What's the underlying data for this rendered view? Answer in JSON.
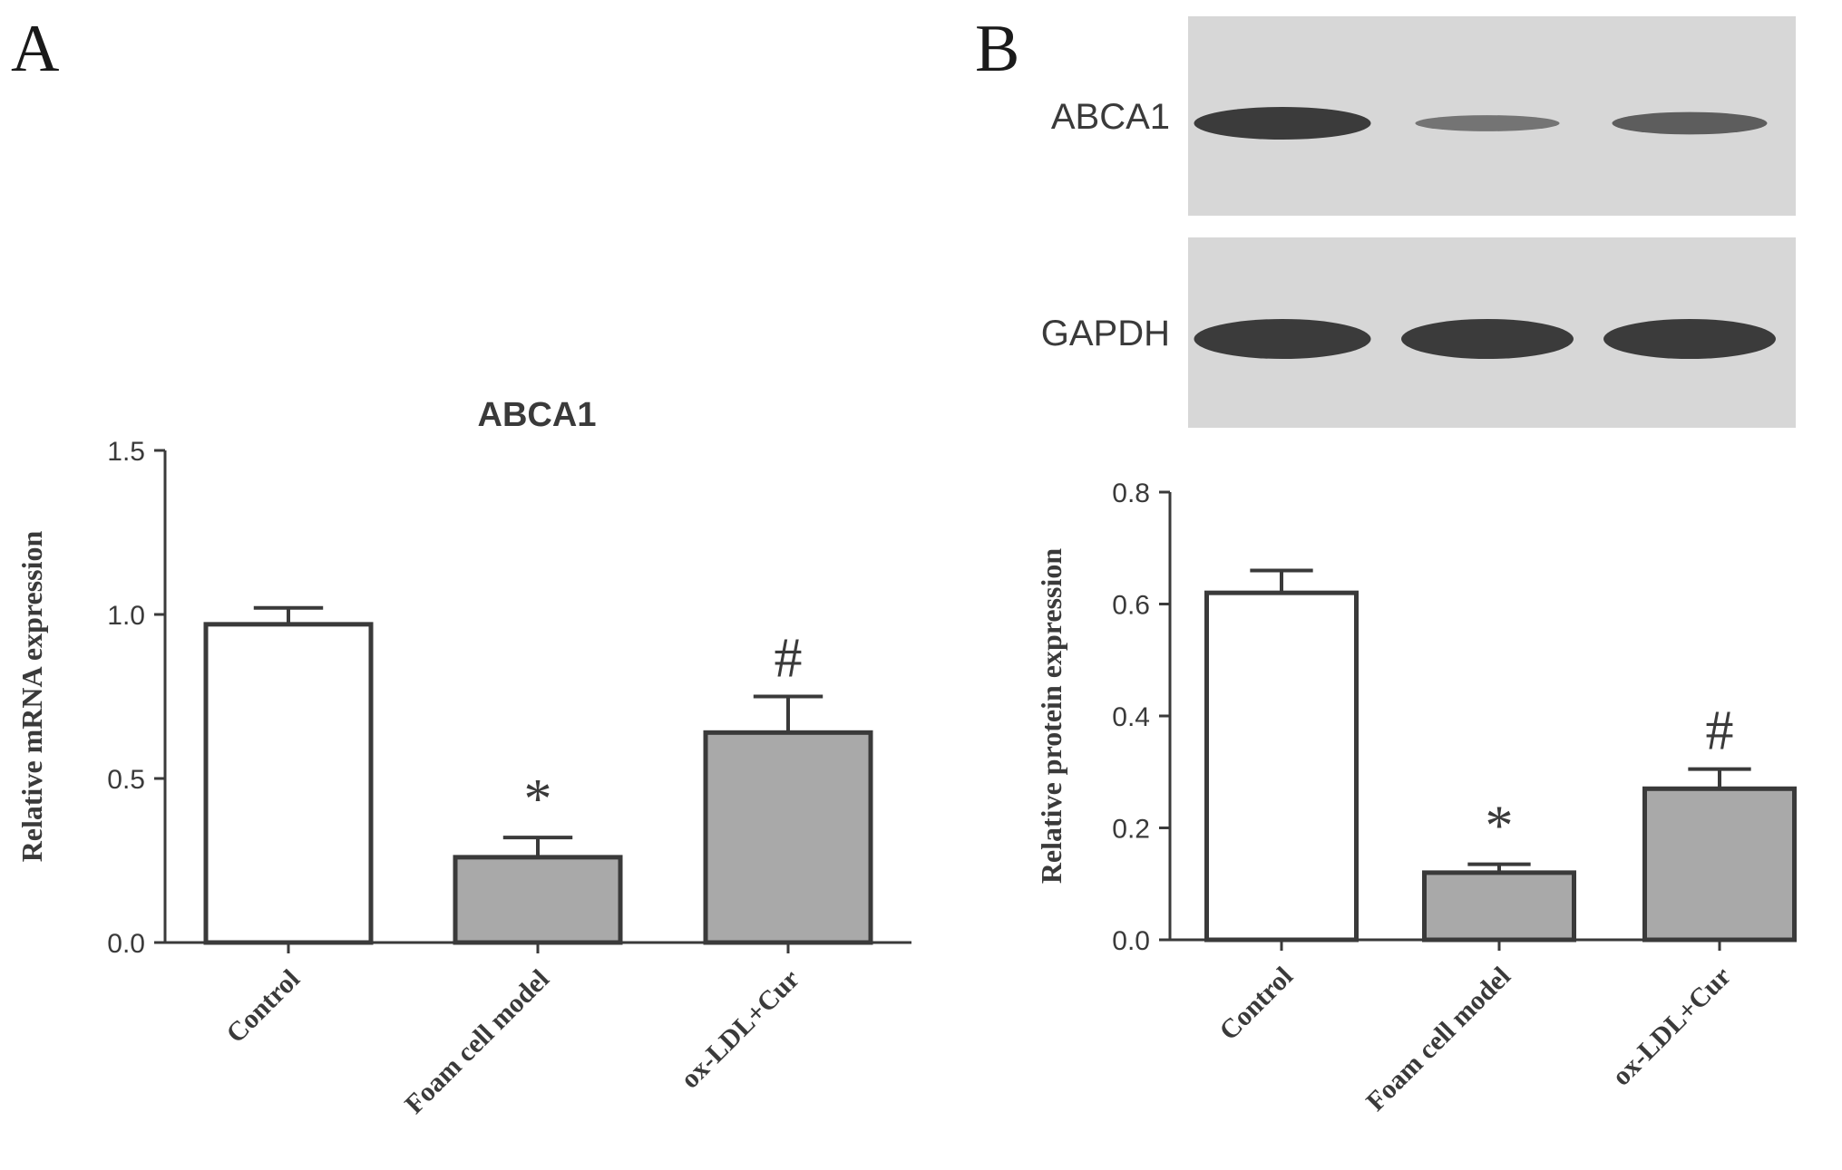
{
  "panels": {
    "a": {
      "letter": "A"
    },
    "b": {
      "letter": "B"
    }
  },
  "blot": {
    "rows": [
      {
        "label": "ABCA1",
        "intensities": [
          1.0,
          0.35,
          0.6
        ]
      },
      {
        "label": "GAPDH",
        "intensities": [
          1.0,
          1.0,
          1.0
        ]
      }
    ]
  },
  "colors": {
    "bar_control": "#ffffff",
    "bar_treated": "#a9a9a9",
    "ink": "#3a3a3a",
    "blot_bg": "#d7d7d7",
    "band": "#3b3b3b"
  },
  "chart_data": [
    {
      "type": "bar",
      "title": "ABCA1",
      "ylabel": "Relative mRNA expression",
      "xlabel": "",
      "categories": [
        "Control",
        "Foam cell model",
        "ox-LDL+Cur"
      ],
      "values": [
        0.97,
        0.26,
        0.64
      ],
      "errors": [
        0.05,
        0.06,
        0.11
      ],
      "significance": [
        "",
        "*",
        "#"
      ],
      "ylim": [
        0,
        1.5
      ],
      "yticks": [
        "0.0",
        "0.5",
        "1.0",
        "1.5"
      ],
      "ytick_values": [
        0,
        0.5,
        1.0,
        1.5
      ],
      "grid": false
    },
    {
      "type": "bar",
      "title": "",
      "ylabel": "Relative protein expression",
      "xlabel": "",
      "categories": [
        "Control",
        "Foam cell model",
        "ox-LDL+Cur"
      ],
      "values": [
        0.62,
        0.12,
        0.27
      ],
      "errors": [
        0.04,
        0.015,
        0.035
      ],
      "significance": [
        "",
        "*",
        "#"
      ],
      "ylim": [
        0,
        0.8
      ],
      "yticks": [
        "0.0",
        "0.2",
        "0.4",
        "0.6",
        "0.8"
      ],
      "ytick_values": [
        0,
        0.2,
        0.4,
        0.6,
        0.8
      ],
      "grid": false
    }
  ]
}
